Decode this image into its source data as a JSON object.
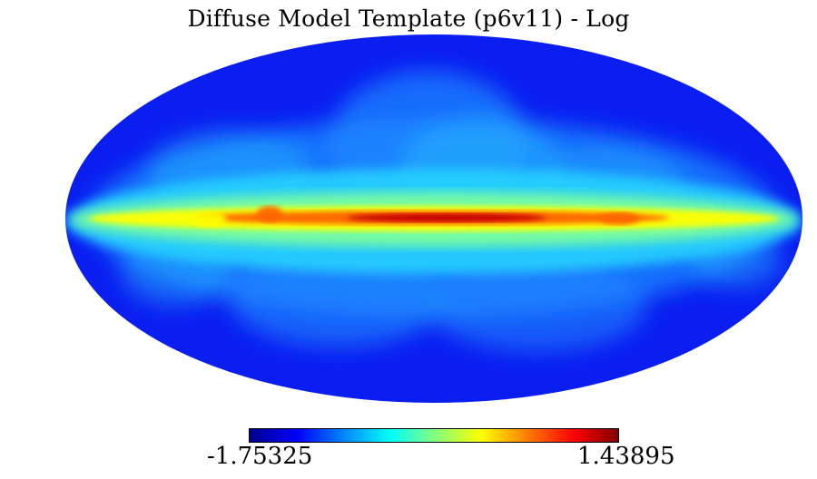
{
  "title": "Diffuse Model Template (p6v11) - Log",
  "colorbar": {
    "min_label": "-1.75325",
    "max_label": "1.43895",
    "colormap": [
      "#00008f",
      "#0000ff",
      "#0080ff",
      "#00ffff",
      "#80ff80",
      "#ffff00",
      "#ff8000",
      "#ff0000",
      "#800000"
    ]
  },
  "map": {
    "projection": "Mollweide",
    "colors": {
      "background": "#0a1ef0",
      "mid": "#1e8cff",
      "halo": "#28d2ff",
      "plane": "#7dff9b",
      "ridge": "#ffff00",
      "hot": "#ff6400",
      "core": "#c80000"
    }
  }
}
